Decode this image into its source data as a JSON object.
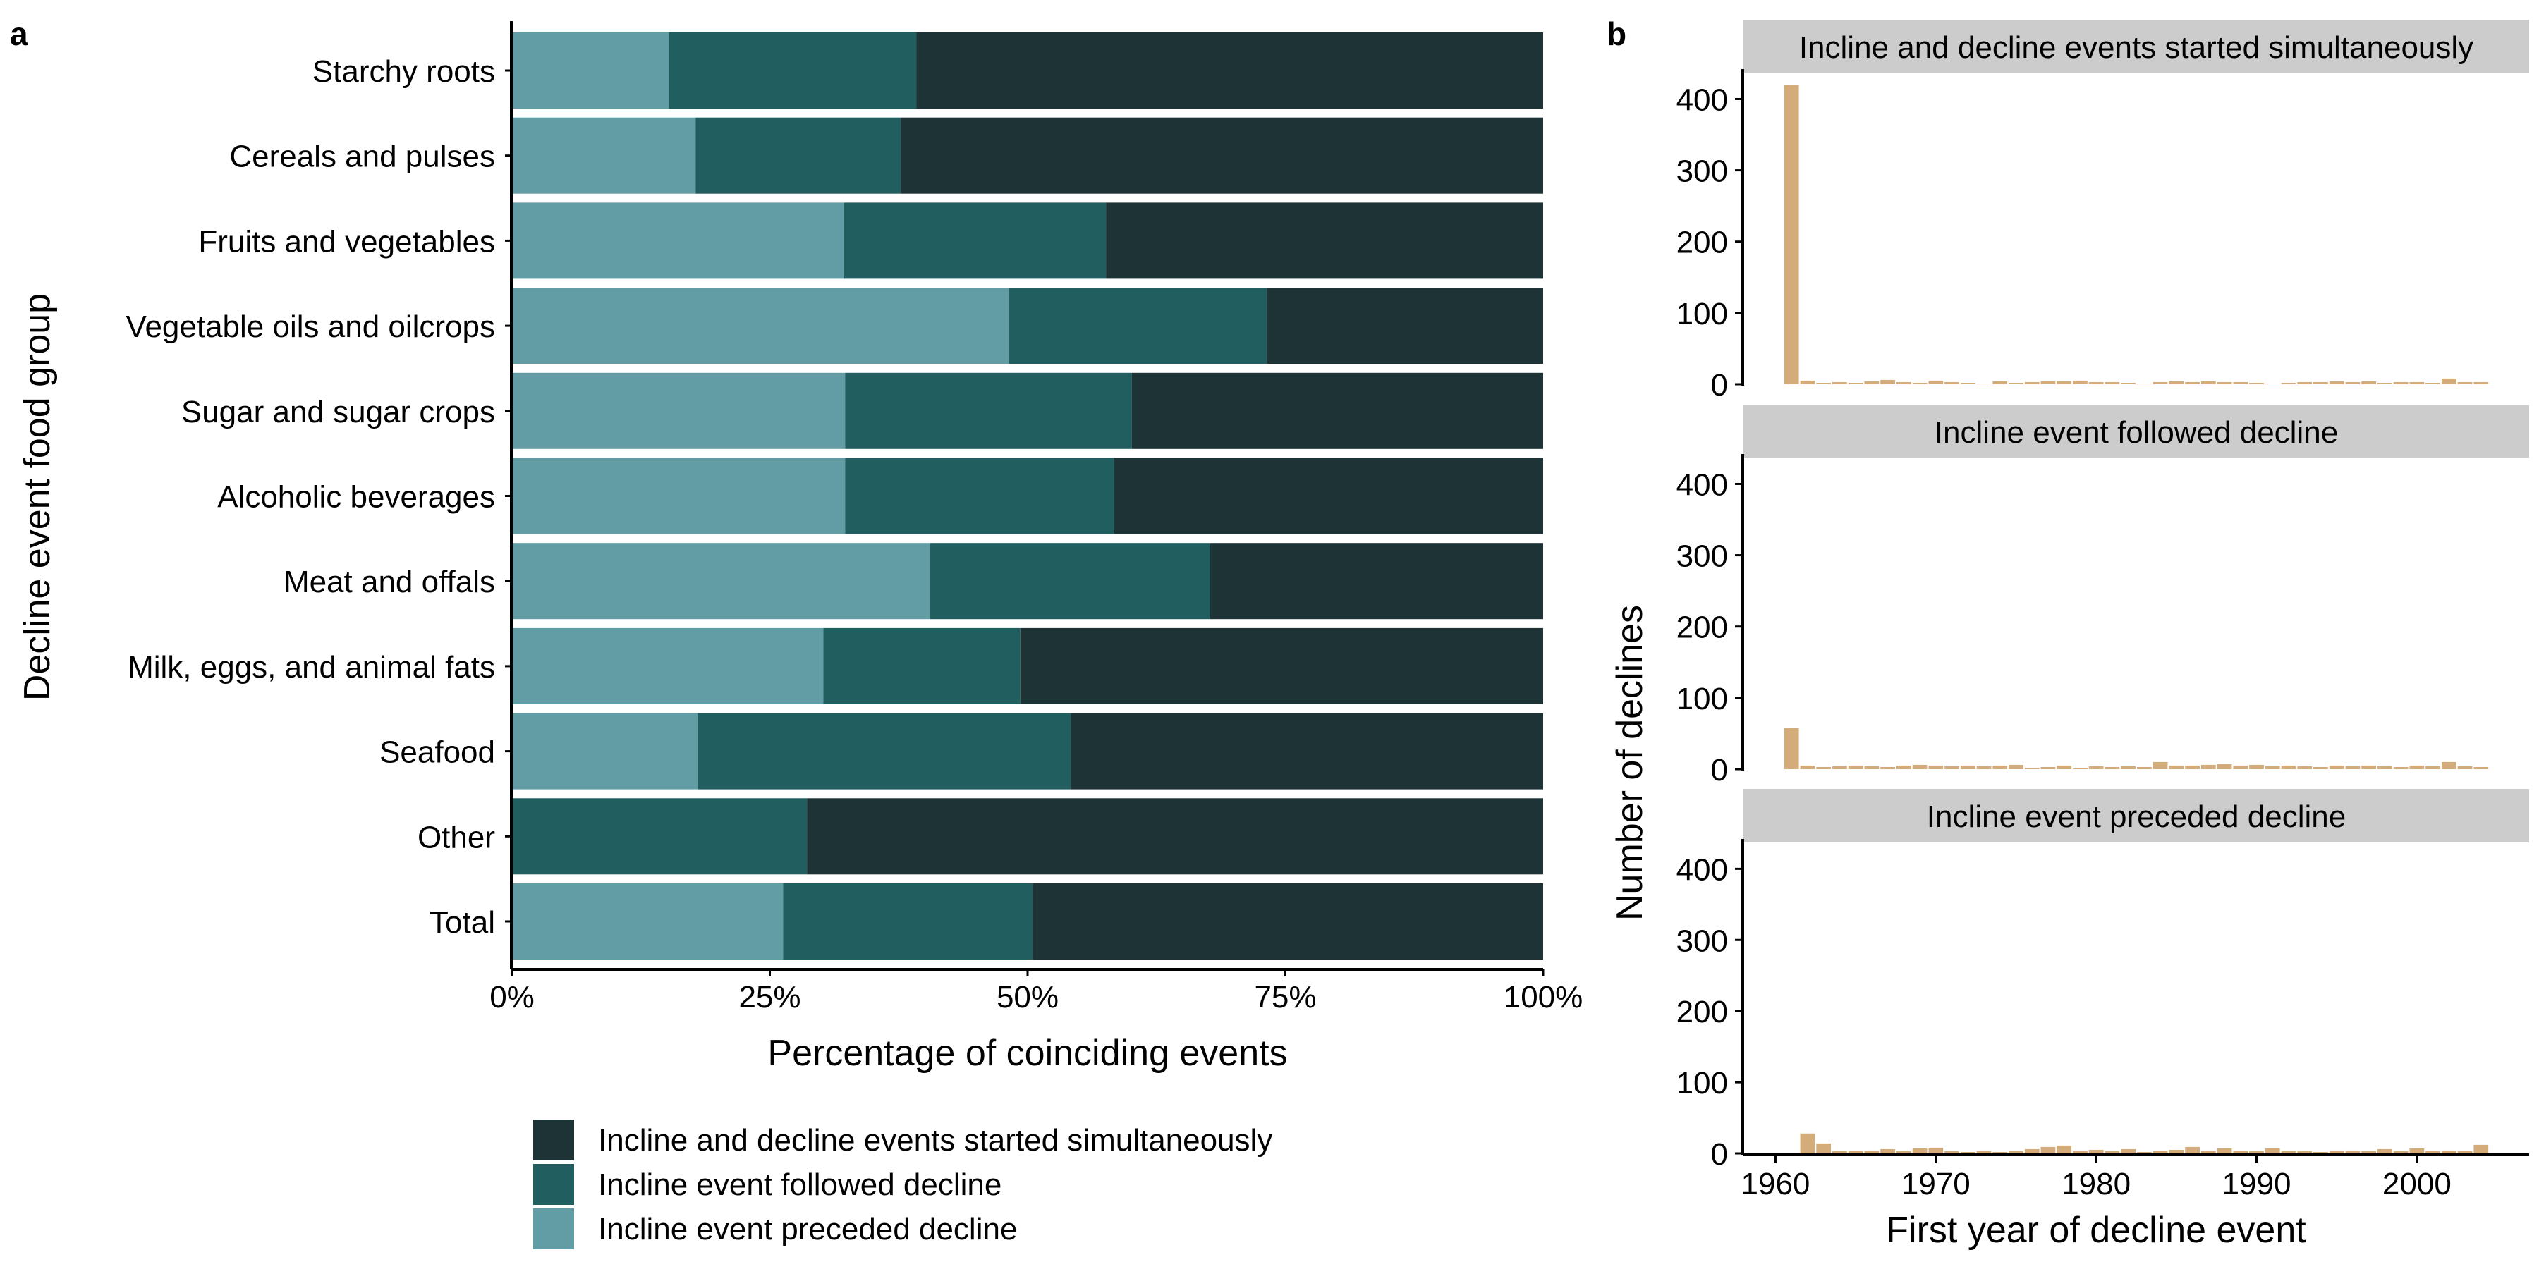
{
  "panel_a_label": "a",
  "panel_b_label": "b",
  "legend": [
    {
      "label": "Incline and decline events started simultaneously",
      "color": "#1e3335"
    },
    {
      "label": "Incline event followed decline",
      "color": "#215e5f"
    },
    {
      "label": "Incline event preceded decline",
      "color": "#629ca5"
    }
  ],
  "chart_data": [
    {
      "type": "bar",
      "orientation": "horizontal",
      "stacked": true,
      "xlabel": "Percentage of coinciding events",
      "ylabel": "Decline event food group",
      "xlim": [
        0,
        100
      ],
      "x_ticks": [
        "0%",
        "25%",
        "50%",
        "75%",
        "100%"
      ],
      "categories": [
        "Starchy roots",
        "Cereals and pulses",
        "Fruits and vegetables",
        "Vegetable oils and oilcrops",
        "Sugar and sugar crops",
        "Alcoholic beverages",
        "Meat and offals",
        "Milk, eggs, and animal fats",
        "Seafood",
        "Other",
        "Total"
      ],
      "series": [
        {
          "name": "Incline event preceded decline",
          "color": "#629ca5",
          "values": [
            15.2,
            17.8,
            32.2,
            48.2,
            32.3,
            32.3,
            40.5,
            30.2,
            18.0,
            0.0,
            26.3
          ]
        },
        {
          "name": "Incline event followed decline",
          "color": "#215e5f",
          "values": [
            24.0,
            19.9,
            25.4,
            25.0,
            27.8,
            26.1,
            27.2,
            19.1,
            36.2,
            28.6,
            24.2
          ]
        },
        {
          "name": "Incline and decline events started simultaneously",
          "color": "#1e3335",
          "values": [
            60.8,
            62.3,
            42.4,
            26.8,
            39.9,
            41.6,
            32.3,
            50.7,
            45.8,
            71.4,
            49.5
          ]
        }
      ],
      "legend_position": "bottom"
    },
    {
      "type": "bar",
      "layout": "faceted histogram",
      "xlabel": "First year of decline event",
      "ylabel": "Number of declines",
      "xlim": [
        1958,
        2007
      ],
      "ylim": [
        0,
        440
      ],
      "x_ticks": [
        1960,
        1970,
        1980,
        1990,
        2000
      ],
      "y_ticks": [
        0,
        100,
        200,
        300,
        400
      ],
      "bar_color": "#d4ac79",
      "strip_color": "#cccccc",
      "x": [
        1961,
        1962,
        1963,
        1964,
        1965,
        1966,
        1967,
        1968,
        1969,
        1970,
        1971,
        1972,
        1973,
        1974,
        1975,
        1976,
        1977,
        1978,
        1979,
        1980,
        1981,
        1982,
        1983,
        1984,
        1985,
        1986,
        1987,
        1988,
        1989,
        1990,
        1991,
        1992,
        1993,
        1994,
        1995,
        1996,
        1997,
        1998,
        1999,
        2000,
        2001,
        2002,
        2003,
        2004
      ],
      "series": [
        {
          "name": "Incline and decline events started simultaneously",
          "values": [
            420,
            5,
            2,
            3,
            2,
            4,
            6,
            3,
            2,
            5,
            3,
            2,
            1,
            4,
            2,
            3,
            4,
            4,
            5,
            3,
            3,
            2,
            1,
            3,
            4,
            3,
            4,
            3,
            3,
            2,
            1,
            2,
            3,
            3,
            4,
            3,
            4,
            2,
            3,
            3,
            2,
            8,
            3,
            3
          ]
        },
        {
          "name": "Incline event followed decline",
          "values": [
            58,
            5,
            3,
            4,
            5,
            4,
            3,
            5,
            6,
            5,
            4,
            5,
            4,
            5,
            6,
            2,
            3,
            5,
            1,
            4,
            3,
            4,
            3,
            10,
            5,
            5,
            6,
            7,
            5,
            6,
            4,
            5,
            4,
            3,
            5,
            4,
            5,
            4,
            3,
            5,
            4,
            10,
            4,
            3
          ]
        },
        {
          "name": "Incline event preceded decline",
          "values": [
            0,
            28,
            14,
            3,
            3,
            4,
            6,
            3,
            7,
            8,
            3,
            2,
            4,
            2,
            3,
            6,
            9,
            11,
            4,
            5,
            3,
            6,
            2,
            3,
            5,
            9,
            4,
            7,
            3,
            3,
            7,
            3,
            3,
            2,
            4,
            4,
            3,
            6,
            3,
            7,
            3,
            4,
            3,
            12
          ]
        }
      ]
    }
  ]
}
